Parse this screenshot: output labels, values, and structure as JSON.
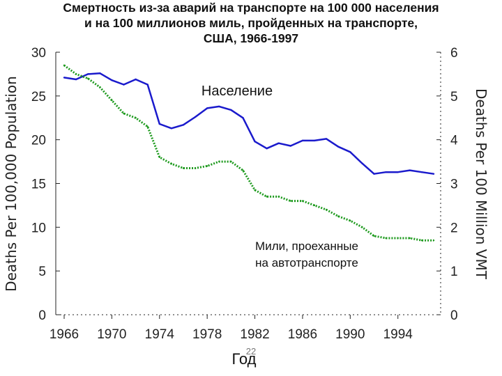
{
  "chart_data": {
    "type": "line",
    "title_lines": [
      "Смертность из-за аварий на транспорте на 100 000 населения",
      "и на 100 миллионов миль, пройденных на транспорте,",
      "США, 1966-1997"
    ],
    "xlabel": "Год",
    "ylabel_left": "Deaths Per 100,000 Population",
    "ylabel_right": "Deaths Per 100 Million VMT",
    "xlim": [
      1966,
      1997
    ],
    "ylim_left": [
      0,
      30
    ],
    "ylim_right": [
      0,
      6
    ],
    "x_ticks": [
      1966,
      1970,
      1974,
      1978,
      1982,
      1986,
      1990,
      1994
    ],
    "y_ticks_left": [
      0,
      5,
      10,
      15,
      20,
      25,
      30
    ],
    "y_ticks_right": [
      0,
      1,
      2,
      3,
      4,
      5,
      6
    ],
    "grid": false,
    "page_number": "22",
    "series": [
      {
        "name": "Население",
        "axis": "left",
        "color": "#1a1acc",
        "style": "solid",
        "x": [
          1966,
          1967,
          1968,
          1969,
          1970,
          1971,
          1972,
          1973,
          1974,
          1975,
          1976,
          1977,
          1978,
          1979,
          1980,
          1981,
          1982,
          1983,
          1984,
          1985,
          1986,
          1987,
          1988,
          1989,
          1990,
          1991,
          1992,
          1993,
          1994,
          1995,
          1996,
          1997
        ],
        "values": [
          27.1,
          26.9,
          27.5,
          27.6,
          26.8,
          26.3,
          26.9,
          26.3,
          21.8,
          21.3,
          21.7,
          22.6,
          23.6,
          23.8,
          23.4,
          22.5,
          19.8,
          19.0,
          19.6,
          19.3,
          19.9,
          19.9,
          20.1,
          19.2,
          18.6,
          17.3,
          16.1,
          16.3,
          16.3,
          16.5,
          16.3,
          16.1
        ]
      },
      {
        "name": "Мили, проеханные на автотранспорте",
        "axis": "right",
        "color": "#1e9a1e",
        "style": "dotted",
        "x": [
          1966,
          1967,
          1968,
          1969,
          1970,
          1971,
          1972,
          1973,
          1974,
          1975,
          1976,
          1977,
          1978,
          1979,
          1980,
          1981,
          1982,
          1983,
          1984,
          1985,
          1986,
          1987,
          1988,
          1989,
          1990,
          1991,
          1992,
          1993,
          1994,
          1995,
          1996,
          1997
        ],
        "values": [
          5.7,
          5.5,
          5.4,
          5.2,
          4.9,
          4.6,
          4.5,
          4.3,
          3.6,
          3.45,
          3.35,
          3.35,
          3.4,
          3.5,
          3.5,
          3.3,
          2.85,
          2.7,
          2.7,
          2.6,
          2.6,
          2.5,
          2.4,
          2.25,
          2.15,
          2.0,
          1.8,
          1.75,
          1.75,
          1.75,
          1.7,
          1.7
        ]
      }
    ],
    "annotations": {
      "population_label": "Население",
      "vmt_label_line1": "Мили, проеханные",
      "vmt_label_line2": "на автотранспорте"
    }
  }
}
